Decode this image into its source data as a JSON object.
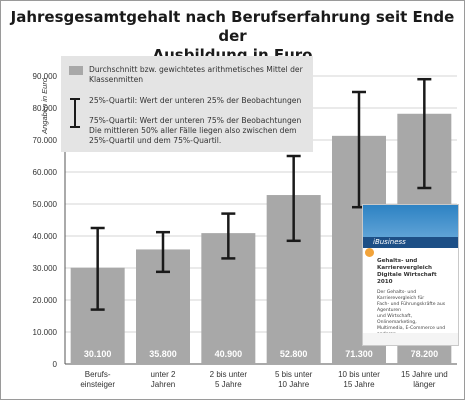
{
  "chart_data": {
    "type": "bar",
    "title": "Jahresgesamtgehalt nach Berufserfahrung seit Ende der\nAusbildung in Euro",
    "ylabel": "Angaben in Euro",
    "ylim": [
      0,
      90000
    ],
    "yticks": [
      "0",
      "10.000",
      "20.000",
      "30.000",
      "40.000",
      "50.000",
      "60.000",
      "70.000",
      "80.000",
      "90.000"
    ],
    "categories": [
      "Berufs-\neinsteiger",
      "unter 2\nJahren",
      "2 bis unter\n5 Jahre",
      "5 bis unter\n10 Jahre",
      "10 bis unter\n15 Jahre",
      "15 Jahre und\nlänger"
    ],
    "values": [
      30100,
      35800,
      40900,
      52800,
      71300,
      78200
    ],
    "value_labels": [
      "30.100",
      "35.800",
      "40.900",
      "52.800",
      "71.300",
      "78.200"
    ],
    "q25": [
      17000,
      28800,
      33000,
      38500,
      49000,
      55000
    ],
    "q75": [
      42500,
      41200,
      47000,
      65000,
      85000,
      89000
    ],
    "grid": true,
    "bar_color": "#a8a8a8",
    "error_color": "#1a1a1a",
    "legend": {
      "placement": "top-left",
      "mean": "Durchschnitt bzw. gewichtetes arithmetisches Mittel der\nKlassenmitten",
      "quartiles": "25%-Quartil: Wert der unteren 25% der Beobachtungen\n\n75%-Quartil: Wert der unteren 75% der Beobachtungen\nDie mittleren 50% aller Fälle liegen also zwischen dem\n25%-Quartil und dem 75%-Quartil."
    }
  },
  "book_cover": {
    "band": "iBusiness Gehaltsspiegel",
    "title": "Gehalts- und\nKarrierevergleich\nDigitale Wirtschaft 2010",
    "subtitle": "Der Gehalts- und Karrierevergleich für\nFach- und Führungskräfte aus Agenturen\nund Wirtschaft, Onlinemarketing,\nMultimedia, E-Commerce und anderen\nMedienzusammenarbeitsprojekten"
  }
}
